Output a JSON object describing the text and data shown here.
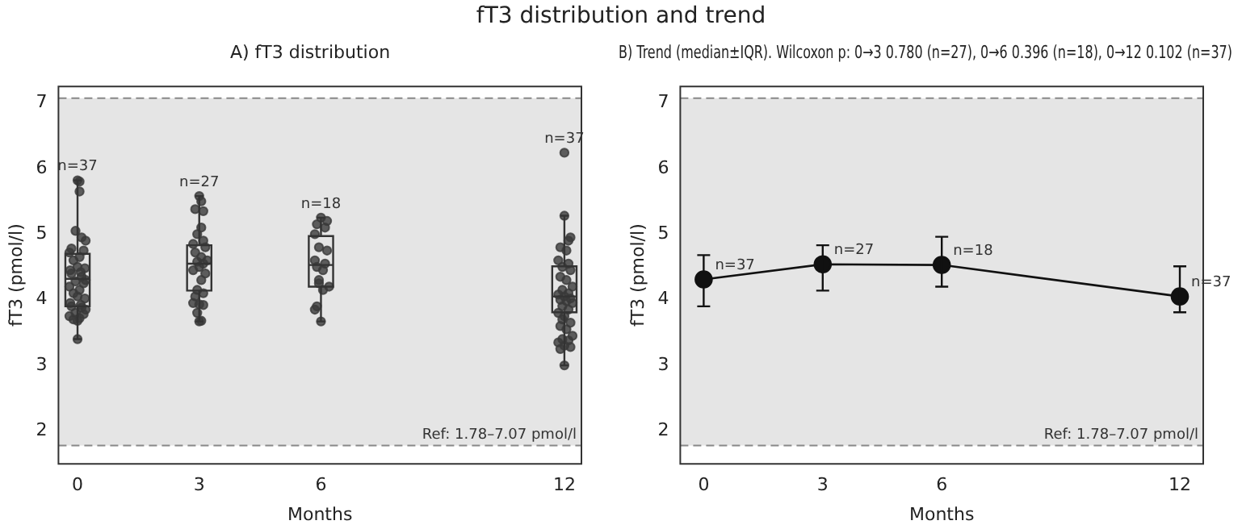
{
  "chart_data": [
    {
      "type": "box",
      "title": "A) fT3 distribution",
      "xlabel": "Months",
      "ylabel": "fT3 (pmol/l)",
      "annotations": [
        "fT3 distribution and trend",
        {
          "text": "n=37",
          "x": 0,
          "y": 5.82
        },
        {
          "text": "n=27",
          "x": 3,
          "y": 5.58
        },
        {
          "text": "n=18",
          "x": 6,
          "y": 5.25
        },
        {
          "text": "n=37",
          "x": 12,
          "y": 6.24
        }
      ],
      "x": [
        0,
        3,
        6,
        12
      ],
      "boxes": [
        {
          "low": 3.4,
          "q1": 3.9,
          "median": 4.32,
          "q3": 4.7,
          "high": 5.82
        },
        {
          "low": 3.67,
          "q1": 4.14,
          "median": 4.55,
          "q3": 4.83,
          "high": 5.58
        },
        {
          "low": 3.67,
          "q1": 4.2,
          "median": 4.53,
          "q3": 4.97,
          "high": 5.25
        },
        {
          "low": 3.0,
          "q1": 3.81,
          "median": 4.05,
          "q3": 4.51,
          "high": 5.28
        }
      ],
      "series": [
        {
          "type": "scatter",
          "color": "#3a3a3a",
          "x": [
            0.0,
            0.05,
            0.05,
            -0.05,
            0.1,
            0.2,
            -0.15,
            0.15,
            -0.2,
            0.05,
            -0.1,
            0,
            0.18,
            -0.18,
            0.08,
            -0.15,
            0.1,
            0.2,
            -0.05,
            0.15,
            -0.2,
            0.05,
            -0.1,
            0,
            0.18,
            -0.18,
            0.08,
            -0.15,
            0.1,
            0.2,
            -0.05,
            0.15,
            -0.2,
            0.05,
            -0.1,
            0,
            0.0,
            3.0,
            3.05,
            2.9,
            3.1,
            3.05,
            2.95,
            3.1,
            2.85,
            3.15,
            2.9,
            3.05,
            3.2,
            2.95,
            3.1,
            3.0,
            2.85,
            3.15,
            3.05,
            2.95,
            3.1,
            2.9,
            2.85,
            3.0,
            3.1,
            2.95,
            3.0,
            3.05,
            6.0,
            6.15,
            5.9,
            6.1,
            5.85,
            5.95,
            6.15,
            5.85,
            6.1,
            5.9,
            6.05,
            5.95,
            6.2,
            6.05,
            5.9,
            5.85,
            6.0,
            5.95,
            12.0,
            12.0,
            12.15,
            12.1,
            11.9,
            12.05,
            11.85,
            12.1,
            11.95,
            12.15,
            11.9,
            12.05,
            12.2,
            11.95,
            12.1,
            11.85,
            12.0,
            12.15,
            11.9,
            12.05,
            12.2,
            11.95,
            12.1,
            11.85,
            12.0,
            12.15,
            11.9,
            12.05,
            12.2,
            11.95,
            12.1,
            11.85,
            12.0,
            12.15,
            11.9,
            12.0,
            11.95
          ],
          "values": [
            5.82,
            5.8,
            5.65,
            5.05,
            4.95,
            4.9,
            4.78,
            4.75,
            4.72,
            4.65,
            4.6,
            4.5,
            4.48,
            4.45,
            4.42,
            4.4,
            4.35,
            4.3,
            4.28,
            4.25,
            4.2,
            4.15,
            4.1,
            4.05,
            4.02,
            3.95,
            3.92,
            3.9,
            3.88,
            3.85,
            3.8,
            3.78,
            3.75,
            3.72,
            3.7,
            3.68,
            3.4,
            5.58,
            5.5,
            5.38,
            5.35,
            5.1,
            5.0,
            4.9,
            4.85,
            4.8,
            4.72,
            4.65,
            4.6,
            4.58,
            4.55,
            4.5,
            4.45,
            4.4,
            4.3,
            4.15,
            4.1,
            4.05,
            3.95,
            3.93,
            3.92,
            3.8,
            3.67,
            3.68,
            5.25,
            5.2,
            5.15,
            5.1,
            5.0,
            4.8,
            4.75,
            4.6,
            4.55,
            4.5,
            4.45,
            4.3,
            4.2,
            4.15,
            3.9,
            3.85,
            3.67,
            4.25,
            6.24,
            5.28,
            4.95,
            4.9,
            4.8,
            4.75,
            4.6,
            4.55,
            4.5,
            4.45,
            4.35,
            4.3,
            4.2,
            4.15,
            4.1,
            4.08,
            4.05,
            4.02,
            4.0,
            3.98,
            3.95,
            3.9,
            3.85,
            3.8,
            3.75,
            3.65,
            3.6,
            3.55,
            3.45,
            3.4,
            3.38,
            3.35,
            3.3,
            3.28,
            3.25,
            3.0,
            3.7
          ]
        }
      ],
      "xlim": [
        -0.47,
        12.42
      ],
      "xticks": [
        0,
        3,
        6,
        12
      ],
      "ylim": [
        1.5,
        7.25
      ],
      "yticks": [
        2,
        3,
        4,
        5,
        6,
        7
      ],
      "bands": [
        {
          "axis": "y",
          "from": 1.78,
          "to": 7.07,
          "label": "Ref: 1.78–7.07 pmol/l",
          "color": "#e5e5e5"
        }
      ],
      "ref_lines": [
        {
          "axis": "y",
          "value": 1.78,
          "color": "#888888",
          "line_style": "dashed"
        },
        {
          "axis": "y",
          "value": 7.07,
          "color": "#888888",
          "line_style": "dashed"
        }
      ],
      "grid": false,
      "legend": false
    },
    {
      "type": "line",
      "title": "B) Trend (median±IQR). Wilcoxon p: 0→3 0.780 (n=27), 0→6 0.396 (n=18), 0→12 0.102 (n=37)",
      "xlabel": "Months",
      "ylabel": "fT3 (pmol/l)",
      "annotations": [
        {
          "text": "n=37",
          "x": 0,
          "y": 4.31
        },
        {
          "text": "n=27",
          "x": 3,
          "y": 4.54
        },
        {
          "text": "n=18",
          "x": 6,
          "y": 4.53
        },
        {
          "text": "n=37",
          "x": 12,
          "y": 4.05
        }
      ],
      "x": [
        0,
        3,
        6,
        12
      ],
      "series": [
        {
          "color": "#111111",
          "values": [
            4.31,
            4.54,
            4.53,
            4.05
          ],
          "errors": [
            [
              3.9,
              4.68
            ],
            [
              4.14,
              4.83
            ],
            [
              4.2,
              4.96
            ],
            [
              3.81,
              4.51
            ]
          ]
        }
      ],
      "xlim": [
        -0.59,
        12.59
      ],
      "xticks": [
        0,
        3,
        6,
        12
      ],
      "ylim": [
        1.5,
        7.25
      ],
      "yticks": [
        2,
        3,
        4,
        5,
        6,
        7
      ],
      "bands": [
        {
          "axis": "y",
          "from": 1.78,
          "to": 7.07,
          "label": "Ref: 1.78–7.07 pmol/l",
          "color": "#e5e5e5"
        }
      ],
      "ref_lines": [
        {
          "axis": "y",
          "value": 1.78,
          "color": "#888888",
          "line_style": "dashed"
        },
        {
          "axis": "y",
          "value": 7.07,
          "color": "#888888",
          "line_style": "dashed"
        }
      ],
      "marker": "circle",
      "line_style": "solid",
      "grid": false,
      "legend": false
    }
  ]
}
